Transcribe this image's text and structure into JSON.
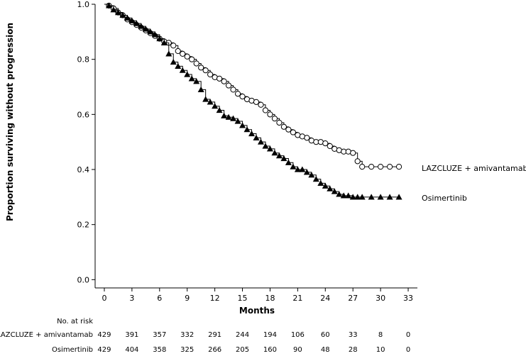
{
  "chart_data": {
    "type": "line",
    "title": "",
    "xlabel": "Months",
    "ylabel": "Proportion surviving without progression",
    "xlim": [
      -1,
      34
    ],
    "ylim": [
      -0.03,
      1.0
    ],
    "x_ticks": [
      0,
      3,
      6,
      9,
      12,
      15,
      18,
      21,
      24,
      27,
      30,
      33
    ],
    "y_ticks": [
      0.0,
      0.2,
      0.4,
      0.6,
      0.8,
      1.0
    ],
    "y_tick_labels": [
      "0.0",
      "0.2",
      "0.4",
      "0.6",
      "0.8",
      "1.0"
    ],
    "grid": false,
    "legend": "labels at right end of curves",
    "series": [
      {
        "name": "LAZCLUZE + amivantamab",
        "marker": "open-circle",
        "color": "#000000",
        "x": [
          0,
          0.5,
          1,
          1.5,
          2,
          2.5,
          3,
          3.5,
          4,
          4.5,
          5,
          5.5,
          6,
          6.5,
          7,
          7.5,
          8,
          8.5,
          9,
          9.5,
          10,
          10.5,
          11,
          11.5,
          12,
          12.5,
          13,
          13.5,
          14,
          14.5,
          15,
          15.5,
          16,
          16.5,
          17,
          17.5,
          18,
          18.5,
          19,
          19.5,
          20,
          20.5,
          21,
          21.5,
          22,
          22.5,
          23,
          23.5,
          24,
          24.5,
          25,
          25.5,
          26,
          26.5,
          27,
          27.5,
          28,
          29,
          30,
          31,
          32
        ],
        "y": [
          1.0,
          0.995,
          0.985,
          0.97,
          0.96,
          0.945,
          0.935,
          0.925,
          0.915,
          0.905,
          0.895,
          0.885,
          0.875,
          0.865,
          0.86,
          0.85,
          0.83,
          0.82,
          0.81,
          0.8,
          0.785,
          0.77,
          0.76,
          0.745,
          0.735,
          0.73,
          0.72,
          0.705,
          0.69,
          0.675,
          0.665,
          0.655,
          0.65,
          0.645,
          0.635,
          0.615,
          0.6,
          0.585,
          0.57,
          0.555,
          0.545,
          0.535,
          0.525,
          0.52,
          0.515,
          0.505,
          0.5,
          0.5,
          0.495,
          0.485,
          0.475,
          0.47,
          0.465,
          0.465,
          0.46,
          0.43,
          0.41,
          0.41,
          0.41,
          0.41,
          0.41
        ]
      },
      {
        "name": "Osimertinib",
        "marker": "filled-triangle",
        "color": "#000000",
        "x": [
          0,
          0.5,
          1,
          1.5,
          2,
          2.5,
          3,
          3.5,
          4,
          4.5,
          5,
          5.5,
          6,
          6.5,
          7,
          7.5,
          8,
          8.5,
          9,
          9.5,
          10,
          10.5,
          11,
          11.5,
          12,
          12.5,
          13,
          13.5,
          14,
          14.5,
          15,
          15.5,
          16,
          16.5,
          17,
          17.5,
          18,
          18.5,
          19,
          19.5,
          20,
          20.5,
          21,
          21.5,
          22,
          22.5,
          23,
          23.5,
          24,
          24.5,
          25,
          25.5,
          26,
          26.5,
          27,
          27.5,
          28,
          29,
          30,
          31,
          32
        ],
        "y": [
          1.0,
          0.995,
          0.98,
          0.97,
          0.96,
          0.95,
          0.94,
          0.93,
          0.92,
          0.91,
          0.9,
          0.89,
          0.875,
          0.86,
          0.82,
          0.79,
          0.775,
          0.76,
          0.745,
          0.73,
          0.72,
          0.69,
          0.655,
          0.645,
          0.63,
          0.615,
          0.595,
          0.59,
          0.585,
          0.575,
          0.56,
          0.545,
          0.53,
          0.515,
          0.5,
          0.485,
          0.475,
          0.46,
          0.45,
          0.44,
          0.425,
          0.41,
          0.4,
          0.4,
          0.39,
          0.38,
          0.365,
          0.35,
          0.34,
          0.33,
          0.32,
          0.31,
          0.305,
          0.305,
          0.3,
          0.3,
          0.3,
          0.3,
          0.3,
          0.3,
          0.3
        ]
      }
    ],
    "risk_table": {
      "title": "No. at risk",
      "times": [
        "0",
        "3",
        "6",
        "9",
        "12",
        "15",
        "18",
        "21",
        "24",
        "27",
        "30",
        "33"
      ],
      "rows": [
        {
          "label": "LAZCLUZE + amivantamab",
          "values": [
            "429",
            "391",
            "357",
            "332",
            "291",
            "244",
            "194",
            "106",
            "60",
            "33",
            "8",
            "0"
          ]
        },
        {
          "label": "Osimertinib",
          "values": [
            "429",
            "404",
            "358",
            "325",
            "266",
            "205",
            "160",
            "90",
            "48",
            "28",
            "10",
            "0"
          ]
        }
      ]
    }
  }
}
